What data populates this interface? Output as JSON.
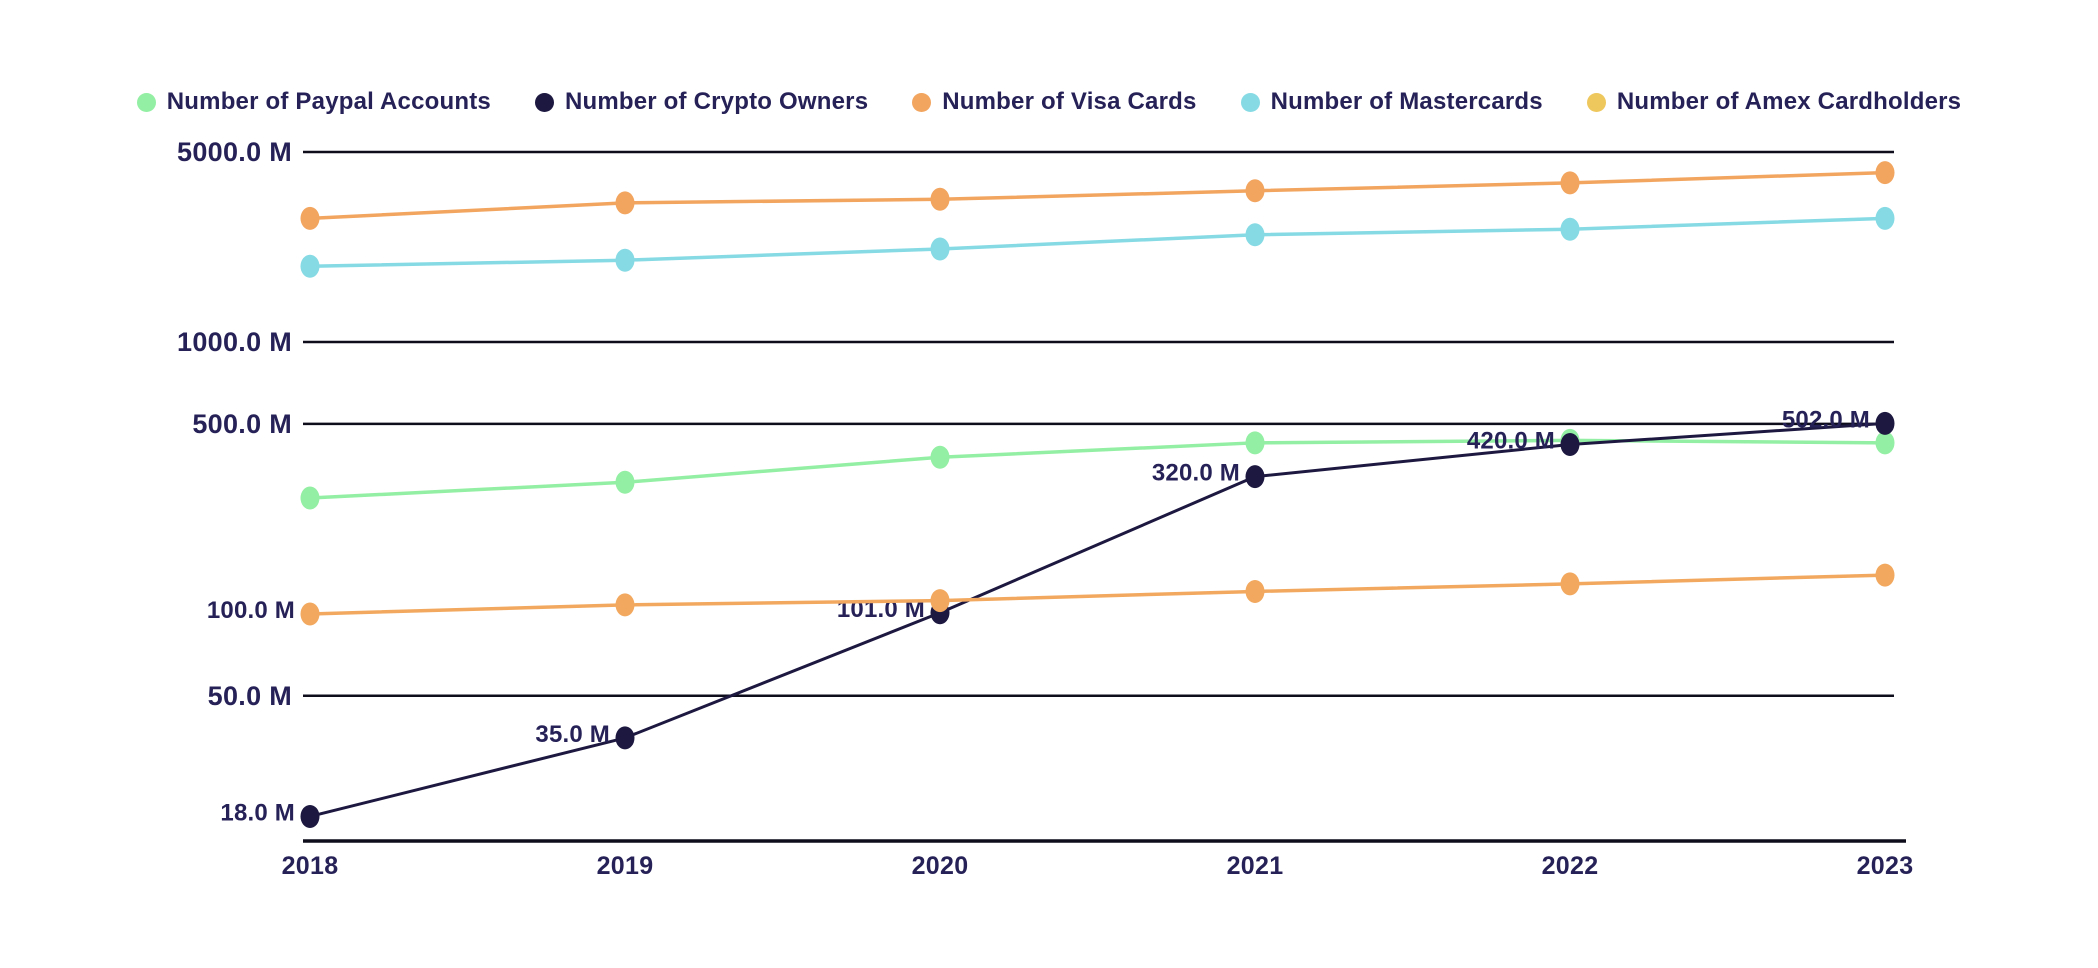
{
  "page": {
    "background": "#ffffff",
    "text_color": "#262257",
    "axis_color": "#0d0d1c"
  },
  "chart_data": {
    "type": "line",
    "title": "",
    "xlabel": "",
    "ylabel": "",
    "unit": "M",
    "x": [
      "2018",
      "2019",
      "2020",
      "2021",
      "2022",
      "2023"
    ],
    "y_axis": {
      "scale": "log",
      "ticks": [
        {
          "value": 5000,
          "label": "5000.0 M"
        },
        {
          "value": 1000,
          "label": "1000.0 M"
        },
        {
          "value": 500,
          "label": "500.0 M"
        },
        {
          "value": 50,
          "label": "50.0 M"
        }
      ],
      "grid": true,
      "range_top": 5000
    },
    "legend": {
      "position": "top-center"
    },
    "series": [
      {
        "name": "Number of Paypal Accounts",
        "color": "#93EFA3",
        "values": [
          267,
          305,
          377,
          426,
          435,
          426
        ],
        "point_labels": [
          "",
          "",
          "",
          "",
          "",
          ""
        ]
      },
      {
        "name": "Number of Crypto Owners",
        "color": "#1C1840",
        "values": [
          18,
          35,
          101,
          320,
          420,
          502
        ],
        "point_labels": [
          "18.0 M",
          "35.0 M",
          "101.0 M",
          "320.0 M",
          "420.0 M",
          "502.0 M"
        ]
      },
      {
        "name": "Number of Visa Cards",
        "color": "#F2A55F",
        "values": [
          2850,
          3250,
          3350,
          3600,
          3850,
          4200
        ],
        "point_labels": [
          "",
          "",
          "",
          "",
          "",
          ""
        ]
      },
      {
        "name": "Number of Mastercards",
        "color": "#86DAE4",
        "values": [
          1900,
          2000,
          2200,
          2480,
          2600,
          2850
        ],
        "point_labels": [
          "",
          "",
          "",
          "",
          "",
          ""
        ]
      },
      {
        "name": "Number of Amex Cardholders",
        "color": "#F2A95F",
        "legend_color": "#EEC75D",
        "values": [
          100,
          108,
          112,
          121,
          129,
          139
        ],
        "point_labels": [
          "100.0 M",
          "",
          "",
          "",
          "",
          ""
        ]
      }
    ]
  }
}
